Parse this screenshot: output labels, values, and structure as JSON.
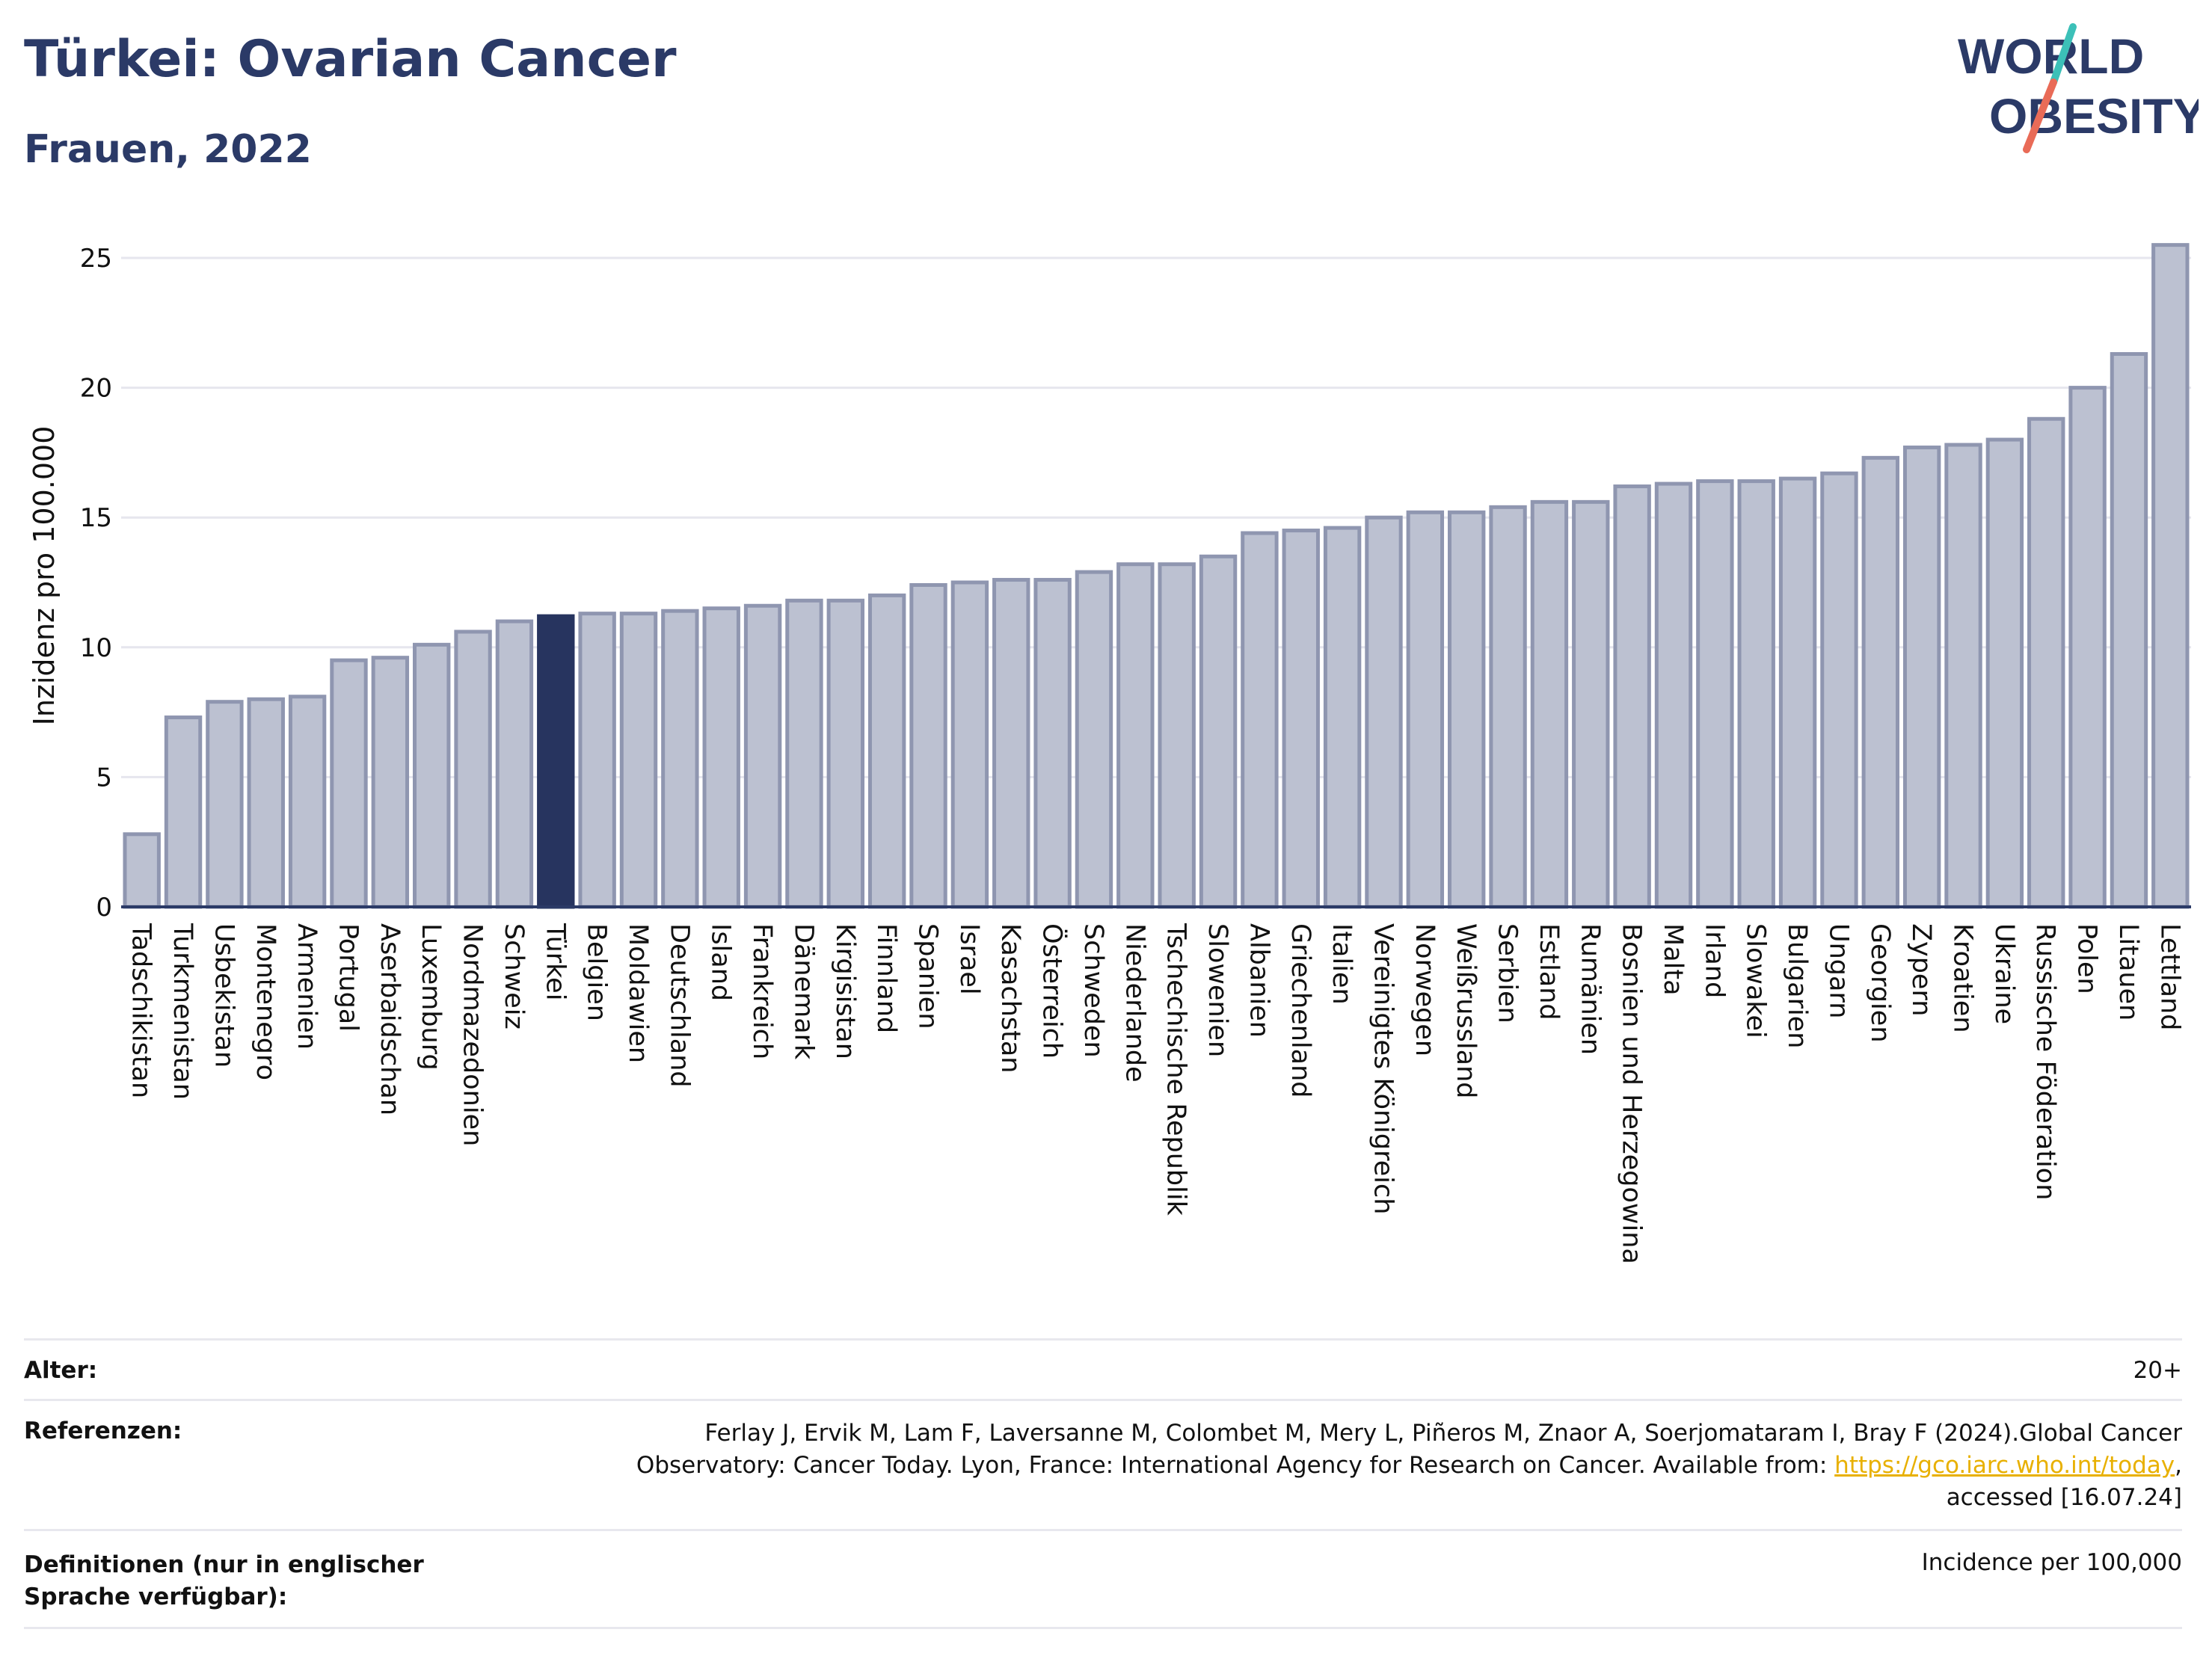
{
  "header": {
    "title": "Türkei: Ovarian Cancer",
    "subtitle": "Frauen, 2022",
    "logo_line1": "WORLD",
    "logo_line2": "OBESITY"
  },
  "colors": {
    "title": "#2b3a67",
    "bar_default": "#bcc1d1",
    "bar_default_stroke": "#8f96b0",
    "bar_highlight": "#27345f",
    "logo_accent_teal": "#3cc0b8",
    "logo_accent_red": "#e96b57",
    "link": "#e8b000"
  },
  "chart_data": {
    "type": "bar",
    "ylabel": "Inzidenz pro 100.000",
    "xlabel": "",
    "ylim": [
      0,
      26
    ],
    "yticks": [
      0,
      5,
      10,
      15,
      20,
      25
    ],
    "grid": true,
    "highlight": "Türkei",
    "categories": [
      "Tadschikistan",
      "Turkmenistan",
      "Usbekistan",
      "Montenegro",
      "Armenien",
      "Portugal",
      "Aserbaidschan",
      "Luxemburg",
      "Nordmazedonien",
      "Schweiz",
      "Türkei",
      "Belgien",
      "Moldawien",
      "Deutschland",
      "Island",
      "Frankreich",
      "Dänemark",
      "Kirgisistan",
      "Finnland",
      "Spanien",
      "Israel",
      "Kasachstan",
      "Österreich",
      "Schweden",
      "Niederlande",
      "Tschechische Republik",
      "Slowenien",
      "Albanien",
      "Griechenland",
      "Italien",
      "Vereinigtes Königreich",
      "Norwegen",
      "Weißrussland",
      "Serbien",
      "Estland",
      "Rumänien",
      "Bosnien und Herzegowina",
      "Malta",
      "Irland",
      "Slowakei",
      "Bulgarien",
      "Ungarn",
      "Georgien",
      "Zypern",
      "Kroatien",
      "Ukraine",
      "Russische Föderation",
      "Polen",
      "Litauen",
      "Lettland"
    ],
    "values": [
      2.8,
      7.3,
      7.9,
      8.0,
      8.1,
      9.5,
      9.6,
      10.1,
      10.6,
      11.0,
      11.2,
      11.3,
      11.3,
      11.4,
      11.5,
      11.6,
      11.8,
      11.8,
      12.0,
      12.4,
      12.5,
      12.6,
      12.6,
      12.9,
      13.2,
      13.2,
      13.5,
      14.4,
      14.5,
      14.6,
      15.0,
      15.2,
      15.2,
      15.4,
      15.6,
      15.6,
      16.2,
      16.3,
      16.4,
      16.4,
      16.5,
      16.7,
      17.3,
      17.7,
      17.8,
      18.0,
      18.8,
      20.0,
      21.3,
      25.5
    ]
  },
  "footer": {
    "age_label": "Alter:",
    "age_value": "20+",
    "refs_label": "Referenzen:",
    "refs_line1": "Ferlay J, Ervik M, Lam F, Laversanne M, Colombet M, Mery L, Piñeros M, Znaor A, Soerjomataram I, Bray F (2024).Global Cancer",
    "refs_line2_text": "Observatory: Cancer Today. Lyon, France: International Agency for Research on Cancer. Available from:",
    "refs_link": "https://gco.iarc.who.int/today",
    "refs_line2_end": ",",
    "refs_line3": "accessed [16.07.24]",
    "defs_label": "Definitionen (nur in englischer Sprache verfügbar):",
    "defs_value": "Incidence per 100,000"
  }
}
